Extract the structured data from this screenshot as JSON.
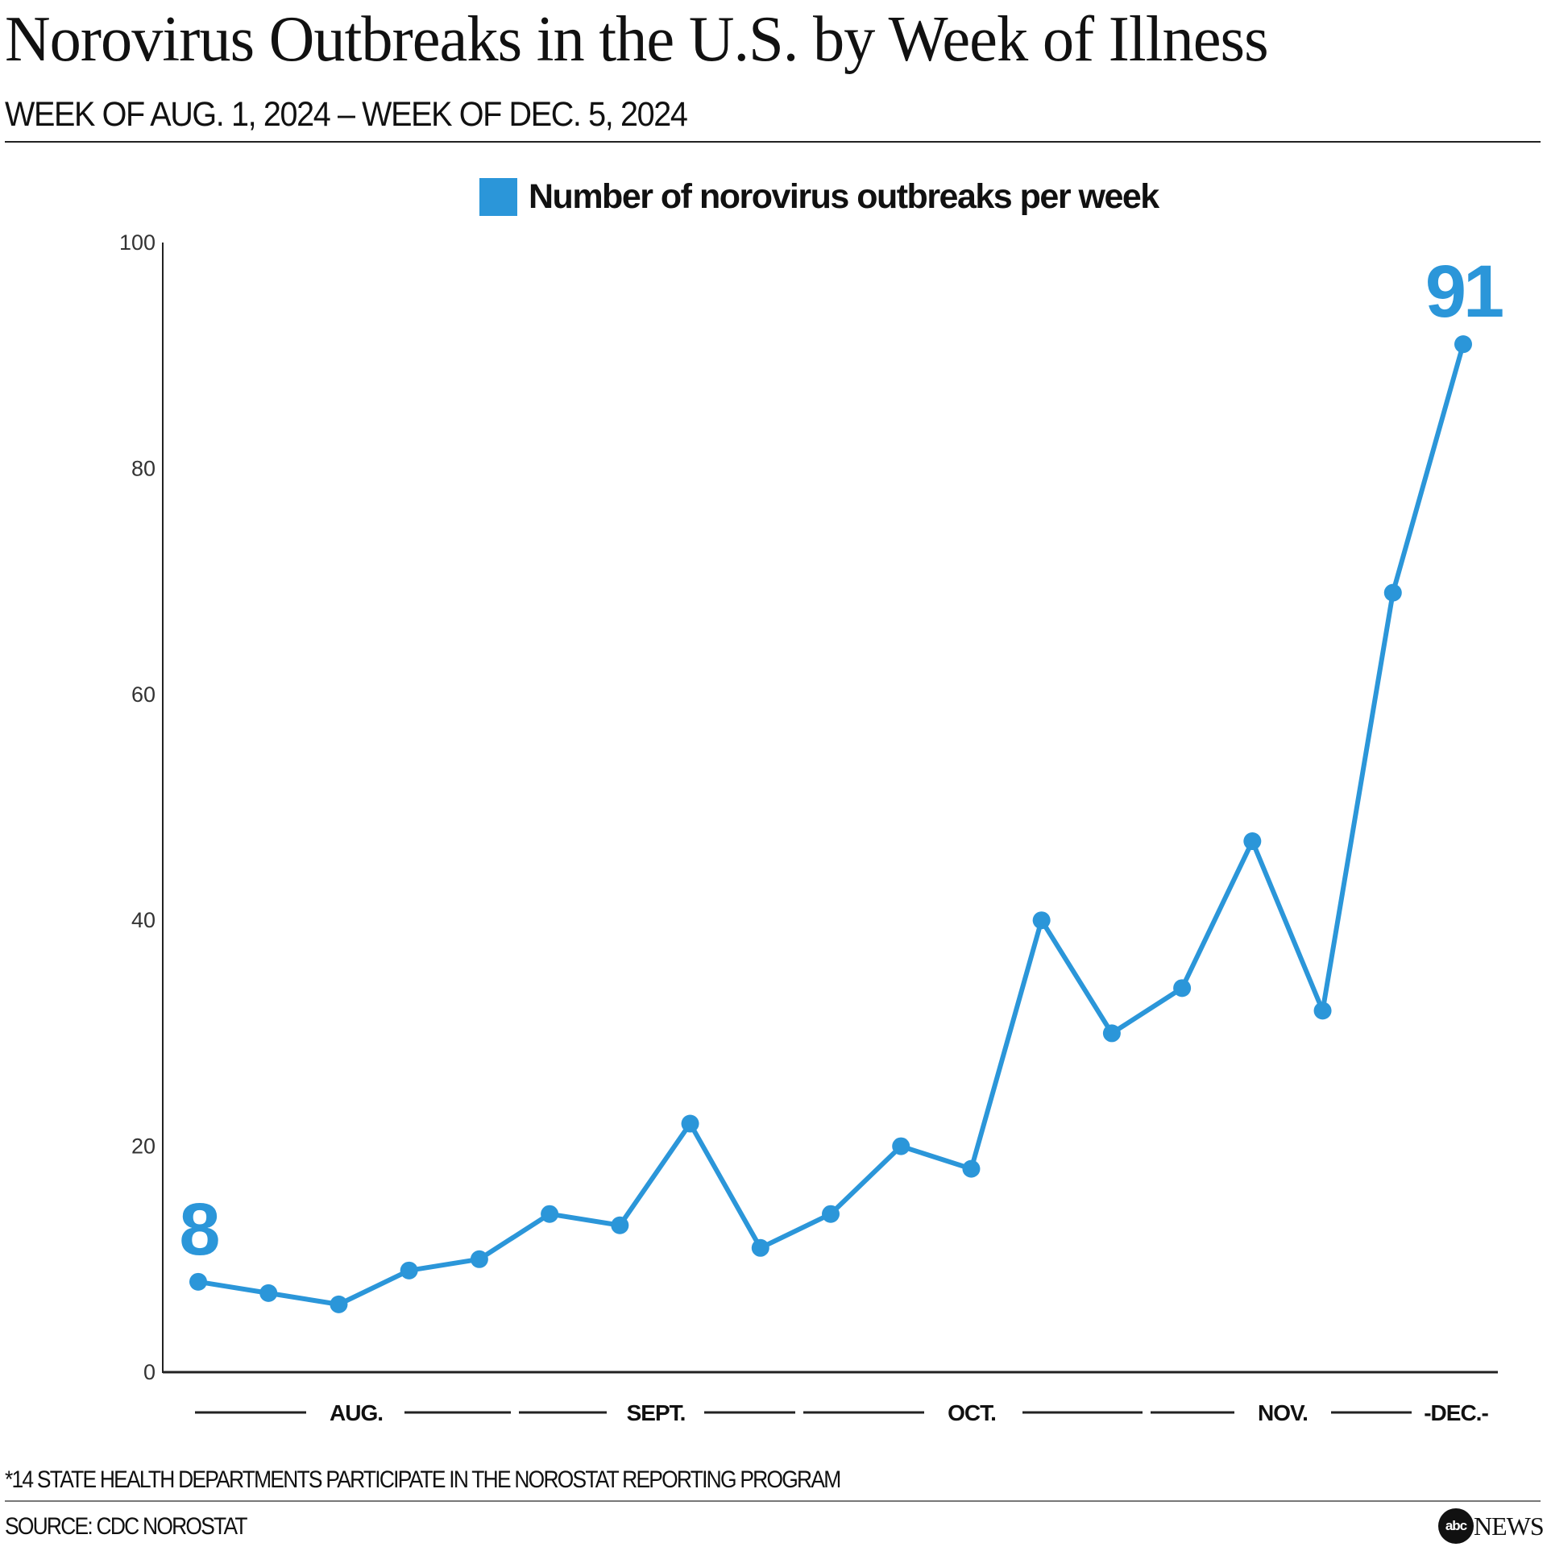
{
  "header": {
    "title": "Norovirus Outbreaks in the U.S. by Week of Illness",
    "subtitle": "WEEK OF AUG. 1, 2024 – WEEK OF DEC. 5, 2024"
  },
  "chart_data": {
    "type": "line",
    "title": "Norovirus Outbreaks in the U.S. by Week of Illness",
    "subtitle": "WEEK OF AUG. 1, 2024 – WEEK OF DEC. 5, 2024",
    "series": [
      {
        "name": "Number of norovirus outbreaks per week",
        "color": "#2b96d9",
        "values": [
          8,
          7,
          6,
          9,
          10,
          14,
          13,
          22,
          11,
          14,
          20,
          18,
          40,
          30,
          34,
          47,
          32,
          69,
          91
        ]
      }
    ],
    "x_month_labels": [
      "AUG.",
      "SEPT.",
      "OCT.",
      "NOV.",
      "DEC."
    ],
    "ylim": [
      0,
      100
    ],
    "yticks": [
      "0",
      "20",
      "40",
      "60",
      "80",
      "100"
    ],
    "annotations": [
      {
        "index": 0,
        "text": "8"
      },
      {
        "index": 18,
        "text": "91"
      }
    ],
    "grid": false,
    "legend": "top-center"
  },
  "footer": {
    "footnote": "*14 STATE HEALTH DEPARTMENTS PARTICIPATE IN THE NOROSTAT REPORTING PROGRAM",
    "source": "SOURCE: CDC NOROSTAT",
    "logo_abc": "abc",
    "logo_news": "NEWS"
  }
}
